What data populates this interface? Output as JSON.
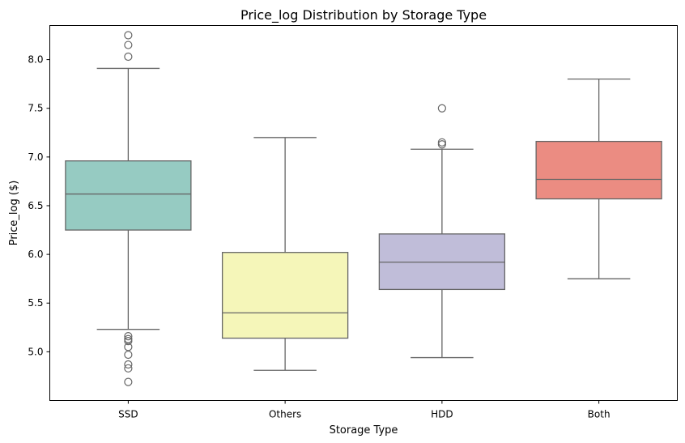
{
  "chart_data": {
    "type": "box",
    "title": "Price_log Distribution by Storage Type",
    "xlabel": "Storage Type",
    "ylabel": "Price_log ($)",
    "categories": [
      "SSD",
      "Others",
      "HDD",
      "Both"
    ],
    "ylim": [
      4.5,
      8.35
    ],
    "yticks": [
      5.0,
      5.5,
      6.0,
      6.5,
      7.0,
      7.5,
      8.0
    ],
    "ytick_labels": [
      "5.0",
      "5.5",
      "6.0",
      "6.5",
      "7.0",
      "7.5",
      "8.0"
    ],
    "grid": false,
    "boxes": [
      {
        "category": "SSD",
        "color": "#96cbc2",
        "whisker_low": 5.23,
        "q1": 6.25,
        "median": 6.62,
        "q3": 6.96,
        "whisker_high": 7.91,
        "outliers": [
          8.25,
          8.15,
          8.03,
          5.16,
          5.13,
          5.11,
          5.05,
          4.97,
          4.87,
          4.83,
          4.69
        ]
      },
      {
        "category": "Others",
        "color": "#f5f6b9",
        "whisker_low": 4.81,
        "q1": 5.14,
        "median": 5.4,
        "q3": 6.02,
        "whisker_high": 7.2,
        "outliers": []
      },
      {
        "category": "HDD",
        "color": "#c0bdd9",
        "whisker_low": 4.94,
        "q1": 5.64,
        "median": 5.92,
        "q3": 6.21,
        "whisker_high": 7.08,
        "outliers": [
          7.5,
          7.15,
          7.13
        ]
      },
      {
        "category": "Both",
        "color": "#eb8c82",
        "whisker_low": 5.75,
        "q1": 6.57,
        "median": 6.77,
        "q3": 7.16,
        "whisker_high": 7.8,
        "outliers": []
      }
    ],
    "line_color": "#666666"
  }
}
